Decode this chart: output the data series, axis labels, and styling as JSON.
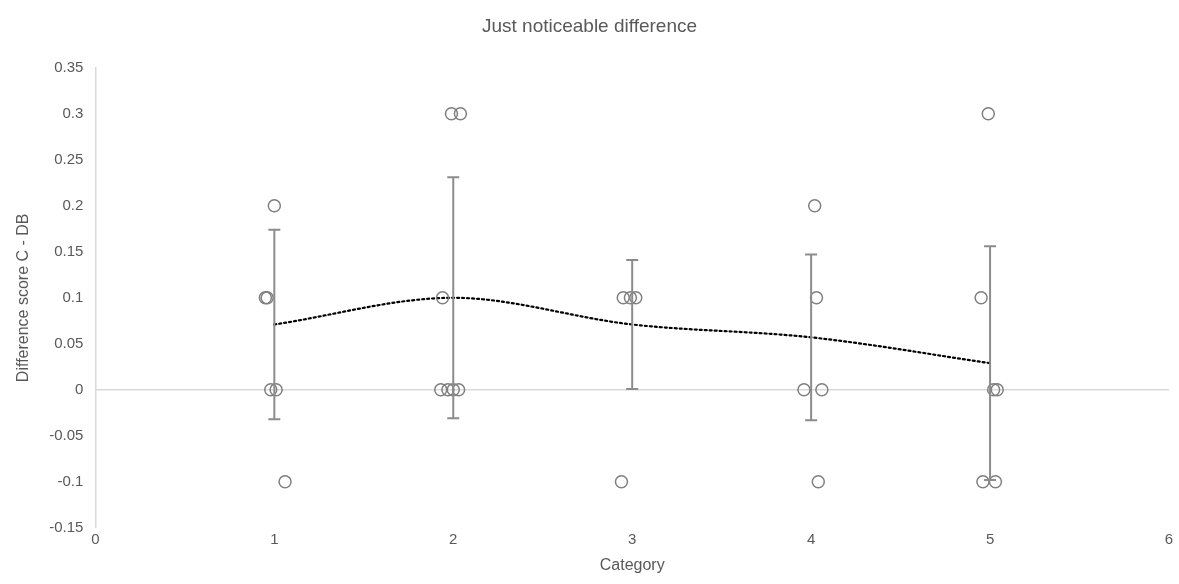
{
  "chart_data": {
    "type": "scatter",
    "title": "Just noticeable difference",
    "xlabel": "Category",
    "ylabel": "Difference score C - DB",
    "xlim": [
      0,
      6
    ],
    "xticks": [
      0,
      1,
      2,
      3,
      4,
      5,
      6
    ],
    "ylim": [
      -0.15,
      0.35
    ],
    "yticks": [
      -0.15,
      -0.1,
      -0.05,
      0,
      0.05,
      0.1,
      0.15,
      0.2,
      0.25,
      0.3,
      0.35
    ],
    "grid": false,
    "legend": false,
    "marker": "circle",
    "ref_lines": [
      {
        "axis": "y",
        "value": 0,
        "color": "#d9d9d9"
      }
    ],
    "series": [
      {
        "color": "#7f7f7f",
        "x": [
          1.0,
          0.95,
          0.96,
          0.98,
          1.01,
          1.06,
          1.99,
          2.04,
          1.94,
          1.93,
          1.97,
          2.0,
          2.03,
          2.95,
          2.99,
          3.02,
          2.94,
          4.02,
          4.03,
          3.96,
          4.06,
          4.04,
          4.99,
          4.95,
          5.02,
          5.04,
          4.96,
          5.03
        ],
        "values": [
          0.2,
          0.1,
          0.1,
          0,
          0,
          -0.1,
          0.3,
          0.3,
          0.1,
          0,
          0,
          0,
          0,
          0.1,
          0.1,
          0.1,
          -0.1,
          0.2,
          0.1,
          0,
          0,
          -0.1,
          0.3,
          0.1,
          0,
          0,
          -0.1,
          -0.1
        ]
      },
      {
        "type": "line",
        "color": "#000000",
        "marker": "none",
        "line_style": "dotted",
        "x": [
          1,
          2,
          3,
          4,
          5
        ],
        "values": [
          0.071,
          0.1,
          0.071,
          0.057,
          0.029
        ],
        "errors": [
          0.103,
          0.131,
          0.07,
          0.09,
          0.127
        ]
      }
    ]
  }
}
